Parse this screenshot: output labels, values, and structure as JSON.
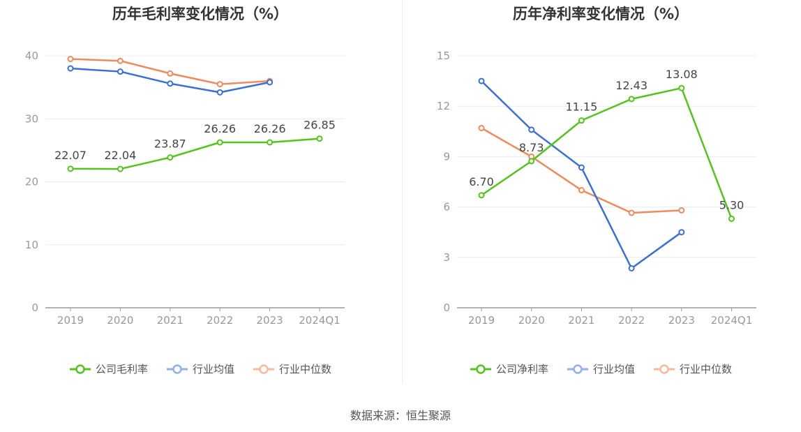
{
  "chart_data": [
    {
      "type": "line",
      "title": "历年毛利率变化情况（%）",
      "categories": [
        "2019",
        "2020",
        "2021",
        "2022",
        "2023",
        "2024Q1"
      ],
      "ylim": [
        0,
        40
      ],
      "yticks": [
        "0",
        "10",
        "20",
        "30",
        "40"
      ],
      "ytick_values": [
        0,
        10,
        20,
        30,
        40
      ],
      "grid": true,
      "legend_position": "bottom-center",
      "series": [
        {
          "name": "公司毛利率",
          "color": "#52c41a",
          "values": [
            22.07,
            22.04,
            23.87,
            26.26,
            26.26,
            26.85
          ],
          "labels": [
            "22.07",
            "22.04",
            "23.87",
            "26.26",
            "26.26",
            "26.85"
          ]
        },
        {
          "name": "行业均值",
          "color": "#3b6fd8",
          "values": [
            38.0,
            37.5,
            35.6,
            34.2,
            35.8,
            null
          ]
        },
        {
          "name": "行业中位数",
          "color": "#f08a5d",
          "values": [
            39.5,
            39.2,
            37.2,
            35.5,
            36.0,
            null
          ]
        }
      ]
    },
    {
      "type": "line",
      "title": "历年净利率变化情况（%）",
      "categories": [
        "2019",
        "2020",
        "2021",
        "2022",
        "2023",
        "2024Q1"
      ],
      "ylim": [
        0,
        15
      ],
      "yticks": [
        "0",
        "3",
        "6",
        "9",
        "12",
        "15"
      ],
      "ytick_values": [
        0,
        3,
        6,
        9,
        12,
        15
      ],
      "grid": true,
      "legend_position": "bottom-center",
      "series": [
        {
          "name": "公司净利率",
          "color": "#52c41a",
          "values": [
            6.7,
            8.73,
            11.15,
            12.43,
            13.08,
            5.3
          ],
          "labels": [
            "6.70",
            "8.73",
            "11.15",
            "12.43",
            "13.08",
            "5.30"
          ]
        },
        {
          "name": "行业均值",
          "color": "#3b6fd8",
          "values": [
            13.5,
            10.6,
            8.35,
            2.35,
            4.5,
            null
          ]
        },
        {
          "name": "行业中位数",
          "color": "#f08a5d",
          "values": [
            10.7,
            9.0,
            7.0,
            5.65,
            5.8,
            null
          ]
        }
      ]
    }
  ],
  "source_text": "数据来源：恒生聚源"
}
